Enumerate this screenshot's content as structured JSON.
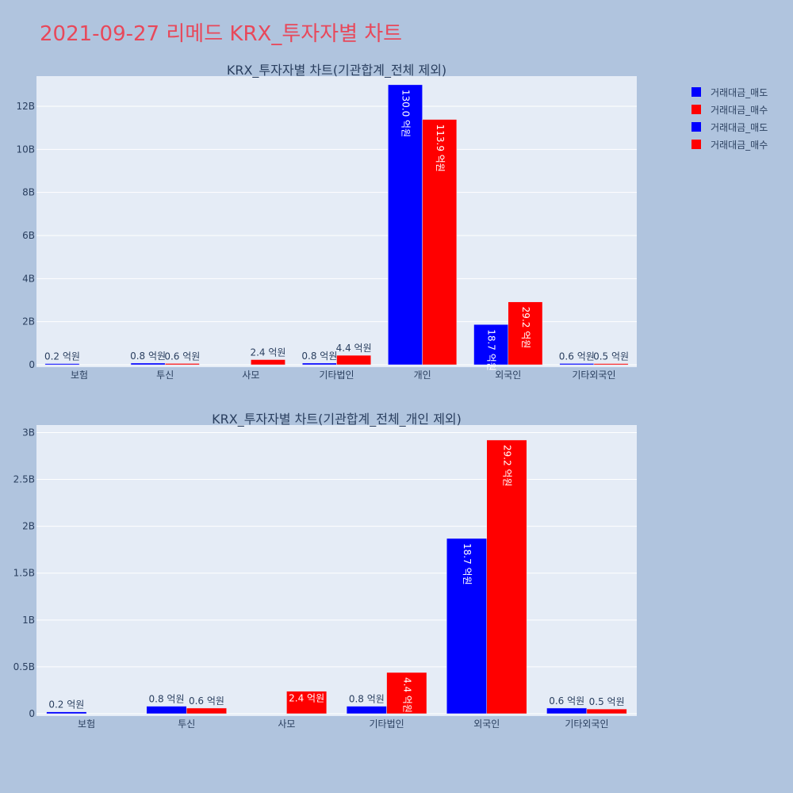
{
  "page": {
    "title": "2021-09-27 리메드 KRX_투자자별 차트",
    "title_color": "#e8485a",
    "background": "#b0c4de",
    "plot_background": "#e5ecf6"
  },
  "legend": {
    "placement": "top-right",
    "items": [
      {
        "label": "거래대금_매도",
        "color": "#0000ff"
      },
      {
        "label": "거래대금_매수",
        "color": "#ff0000"
      },
      {
        "label": "거래대금_매도",
        "color": "#0000ff"
      },
      {
        "label": "거래대금_매수",
        "color": "#ff0000"
      }
    ]
  },
  "chart_data": [
    {
      "type": "bar",
      "title": "KRX_투자자별 차트(기관합계_전체 제외)",
      "categories": [
        "보험",
        "투신",
        "사모",
        "기타법인",
        "개인",
        "외국인",
        "기타외국인"
      ],
      "ylim": [
        0,
        13400000000
      ],
      "yticks": [
        0,
        2000000000,
        4000000000,
        6000000000,
        8000000000,
        10000000000,
        12000000000
      ],
      "ytick_labels": [
        "0",
        "2B",
        "4B",
        "6B",
        "8B",
        "10B",
        "12B"
      ],
      "grid": true,
      "series": [
        {
          "name": "거래대금_매도",
          "color": "#0000ff",
          "values": [
            20000000,
            80000000,
            0,
            80000000,
            13000000000,
            1870000000,
            60000000
          ],
          "labels": [
            "0.2 억원",
            "0.8 억원",
            "",
            "0.8 억원",
            "130.0 억원",
            "18.7 억원",
            "0.6 억원"
          ]
        },
        {
          "name": "거래대금_매수",
          "color": "#ff0000",
          "values": [
            0,
            60000000,
            240000000,
            440000000,
            11390000000,
            2920000000,
            50000000
          ],
          "labels": [
            "",
            "0.6 억원",
            "2.4 억원",
            "4.4 억원",
            "113.9 억원",
            "29.2 억원",
            "0.5 억원"
          ]
        }
      ]
    },
    {
      "type": "bar",
      "title": "KRX_투자자별 차트(기관합계_전체_개인 제외)",
      "categories": [
        "보험",
        "투신",
        "사모",
        "기타법인",
        "외국인",
        "기타외국인"
      ],
      "ylim": [
        0,
        3080000000
      ],
      "yticks": [
        0,
        500000000,
        1000000000,
        1500000000,
        2000000000,
        2500000000,
        3000000000
      ],
      "ytick_labels": [
        "0",
        "0.5B",
        "1B",
        "1.5B",
        "2B",
        "2.5B",
        "3B"
      ],
      "grid": true,
      "series": [
        {
          "name": "거래대금_매도",
          "color": "#0000ff",
          "values": [
            20000000,
            80000000,
            0,
            80000000,
            1870000000,
            60000000
          ],
          "labels": [
            "0.2 억원",
            "0.8 억원",
            "",
            "0.8 억원",
            "18.7 억원",
            "0.6 억원"
          ]
        },
        {
          "name": "거래대금_매수",
          "color": "#ff0000",
          "values": [
            0,
            60000000,
            240000000,
            440000000,
            2920000000,
            50000000
          ],
          "labels": [
            "",
            "0.6 억원",
            "2.4 억원",
            "4.4 억원",
            "29.2 억원",
            "0.5 억원"
          ]
        }
      ]
    }
  ]
}
